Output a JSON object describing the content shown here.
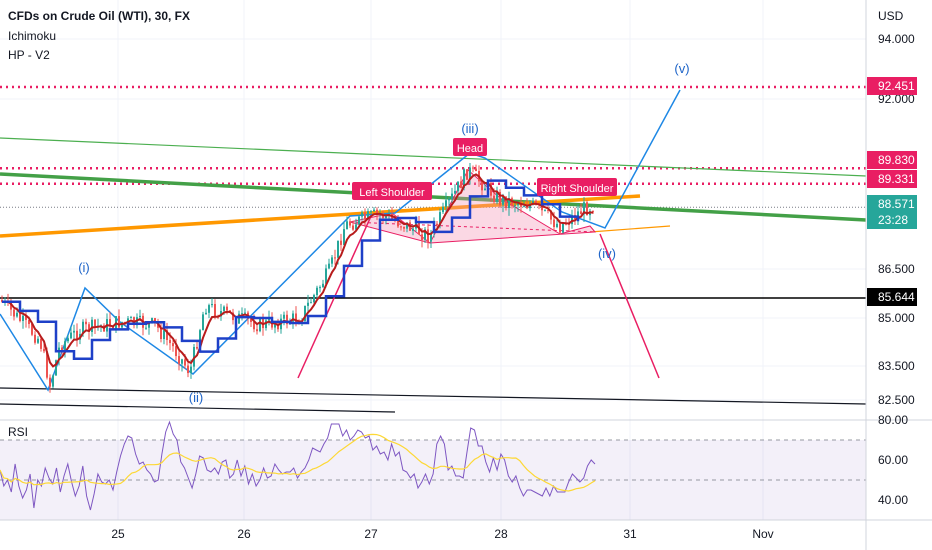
{
  "header": {
    "title": "CFDs on Crude Oil (WTI), 30, FX",
    "indicator_1": "Ichimoku",
    "indicator_2": "HP - V2",
    "currency": "USD"
  },
  "chart_data": {
    "type": "line",
    "x_ticks": [
      "25",
      "26",
      "27",
      "28",
      "31",
      "Nov"
    ],
    "y_ticks": [
      "94.000",
      "92.000",
      "86.500",
      "85.000",
      "83.500",
      "82.500"
    ],
    "price_labels": [
      {
        "value": "92.451",
        "color": "#e91e63"
      },
      {
        "value": "89.830",
        "color": "#e91e63"
      },
      {
        "value": "89.331",
        "color": "#e91e63"
      },
      {
        "value": "88.571",
        "color": "#26a69a"
      },
      {
        "value": "23:28",
        "color": "#26a69a"
      },
      {
        "value": "85.644",
        "color": "#000000"
      }
    ],
    "levels": [
      92.451,
      89.83,
      89.331,
      85.644
    ],
    "wave_labels": [
      "(i)",
      "(ii)",
      "(iii)",
      "(iv)",
      "(v)"
    ],
    "pattern_labels": [
      "Left Shoulder",
      "Head",
      "Right Shoulder"
    ],
    "rsi": {
      "label": "RSI",
      "y_ticks": [
        "80.00",
        "60.00",
        "40.00"
      ],
      "values": [
        55,
        47,
        50,
        44,
        58,
        47,
        41,
        45,
        53,
        36,
        50,
        47,
        56,
        51,
        48,
        56,
        44,
        52,
        58,
        49,
        42,
        47,
        57,
        42,
        35,
        43,
        53,
        49,
        48,
        50,
        45,
        54,
        62,
        68,
        72,
        71,
        63,
        58,
        59,
        55,
        53,
        49,
        50,
        63,
        74,
        79,
        73,
        70,
        59,
        56,
        51,
        46,
        53,
        62,
        61,
        55,
        54,
        56,
        53,
        59,
        60,
        51,
        53,
        60,
        52,
        57,
        48,
        53,
        47,
        50,
        56,
        51,
        52,
        58,
        55,
        53,
        54,
        54,
        56,
        51,
        54,
        56,
        60,
        66,
        65,
        64,
        68,
        71,
        78,
        78,
        78,
        72,
        75,
        70,
        72,
        75,
        74,
        71,
        72,
        65,
        67,
        63,
        64,
        60,
        68,
        62,
        64,
        55,
        54,
        51,
        53,
        46,
        49,
        53,
        48,
        53,
        68,
        72,
        68,
        55,
        57,
        52,
        52,
        51,
        64,
        76,
        75,
        67,
        67,
        59,
        54,
        61,
        55,
        63,
        60,
        52,
        49,
        52,
        46,
        42,
        45,
        45,
        44,
        43,
        42,
        46,
        42,
        47,
        44,
        44,
        44,
        49,
        53,
        51,
        49,
        51,
        57,
        60,
        58
      ]
    }
  }
}
